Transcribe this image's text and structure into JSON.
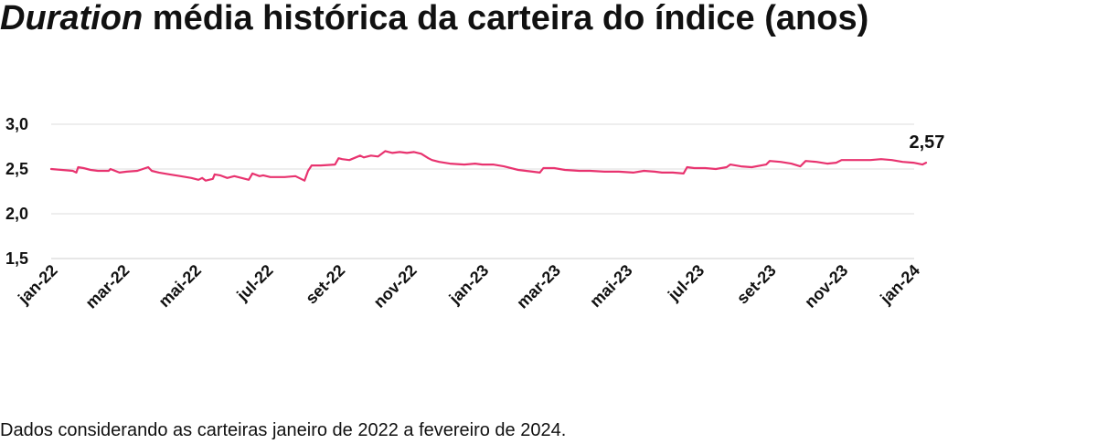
{
  "header": {
    "title_em": "Duration",
    "title_rest": " média histórica da carteira do índice (anos)"
  },
  "footnote": "Dados considerando as carteiras janeiro de 2022 a fevereiro de 2024.",
  "colors": {
    "line": "#e8336f",
    "grid": "#dddddd",
    "text": "#111111"
  },
  "chart_data": {
    "type": "line",
    "title": "Duration média histórica da carteira do índice (anos)",
    "xlabel": "",
    "ylabel": "",
    "ylim": [
      1.5,
      3.0
    ],
    "yticks": [
      {
        "value": 3.0,
        "label": "3,0"
      },
      {
        "value": 2.5,
        "label": "2,5"
      },
      {
        "value": 2.0,
        "label": "2,0"
      },
      {
        "value": 1.5,
        "label": "1,5"
      }
    ],
    "xlim": [
      0,
      25
    ],
    "xticks": [
      {
        "value": 0,
        "label": "jan-22"
      },
      {
        "value": 2,
        "label": "mar-22"
      },
      {
        "value": 4,
        "label": "mai-22"
      },
      {
        "value": 6,
        "label": "jul-22"
      },
      {
        "value": 8,
        "label": "set-22"
      },
      {
        "value": 10,
        "label": "nov-22"
      },
      {
        "value": 12,
        "label": "jan-23"
      },
      {
        "value": 14,
        "label": "mar-23"
      },
      {
        "value": 16,
        "label": "mai-23"
      },
      {
        "value": 18,
        "label": "jul-23"
      },
      {
        "value": 20,
        "label": "set-23"
      },
      {
        "value": 22,
        "label": "nov-23"
      },
      {
        "value": 24,
        "label": "jan-24"
      }
    ],
    "grid": true,
    "legend": "none",
    "series": [
      {
        "x": [
          0,
          0.3,
          0.6,
          0.7,
          0.75,
          0.9,
          1.1,
          1.3,
          1.6,
          1.65,
          1.9,
          2.1,
          2.4,
          2.7,
          2.8,
          3.0,
          3.3,
          3.6,
          3.9,
          4.1,
          4.2,
          4.3,
          4.5,
          4.55,
          4.7,
          4.9,
          5.1,
          5.3,
          5.5,
          5.6,
          5.8,
          5.9,
          6.1,
          6.3,
          6.5,
          6.8,
          7.05,
          7.15,
          7.25,
          7.5,
          7.9,
          8.0,
          8.1,
          8.3,
          8.6,
          8.7,
          8.9,
          9.1,
          9.3,
          9.5,
          9.7,
          9.9,
          10.1,
          10.3,
          10.5,
          10.6,
          10.8,
          11.1,
          11.5,
          11.8,
          12.0,
          12.3,
          12.6,
          13.0,
          13.4,
          13.6,
          13.7,
          14.0,
          14.3,
          14.7,
          15.0,
          15.4,
          15.8,
          16.2,
          16.5,
          16.8,
          17.0,
          17.3,
          17.6,
          17.7,
          17.9,
          18.2,
          18.5,
          18.8,
          18.9,
          19.2,
          19.5,
          19.9,
          20.0,
          20.3,
          20.6,
          20.85,
          21.0,
          21.3,
          21.6,
          21.85,
          22.0,
          22.2,
          22.5,
          22.8,
          23.1,
          23.4,
          23.7,
          24.0,
          24.25,
          24.35
        ],
        "y": [
          2.5,
          2.49,
          2.48,
          2.46,
          2.52,
          2.51,
          2.49,
          2.48,
          2.48,
          2.5,
          2.46,
          2.47,
          2.48,
          2.52,
          2.48,
          2.46,
          2.44,
          2.42,
          2.4,
          2.38,
          2.4,
          2.37,
          2.39,
          2.44,
          2.43,
          2.4,
          2.42,
          2.4,
          2.38,
          2.45,
          2.42,
          2.43,
          2.41,
          2.41,
          2.41,
          2.42,
          2.37,
          2.48,
          2.54,
          2.54,
          2.55,
          2.62,
          2.61,
          2.6,
          2.65,
          2.63,
          2.65,
          2.64,
          2.7,
          2.68,
          2.69,
          2.68,
          2.69,
          2.67,
          2.62,
          2.6,
          2.58,
          2.56,
          2.55,
          2.56,
          2.55,
          2.55,
          2.53,
          2.49,
          2.47,
          2.46,
          2.51,
          2.51,
          2.49,
          2.48,
          2.48,
          2.47,
          2.47,
          2.46,
          2.48,
          2.47,
          2.46,
          2.46,
          2.45,
          2.52,
          2.51,
          2.51,
          2.5,
          2.52,
          2.55,
          2.53,
          2.52,
          2.55,
          2.59,
          2.58,
          2.56,
          2.53,
          2.59,
          2.58,
          2.56,
          2.57,
          2.6,
          2.6,
          2.6,
          2.6,
          2.61,
          2.6,
          2.58,
          2.57,
          2.55,
          2.57
        ]
      }
    ],
    "annotations": [
      {
        "text": "2,57",
        "x": 24.35,
        "y": 2.57
      }
    ]
  }
}
